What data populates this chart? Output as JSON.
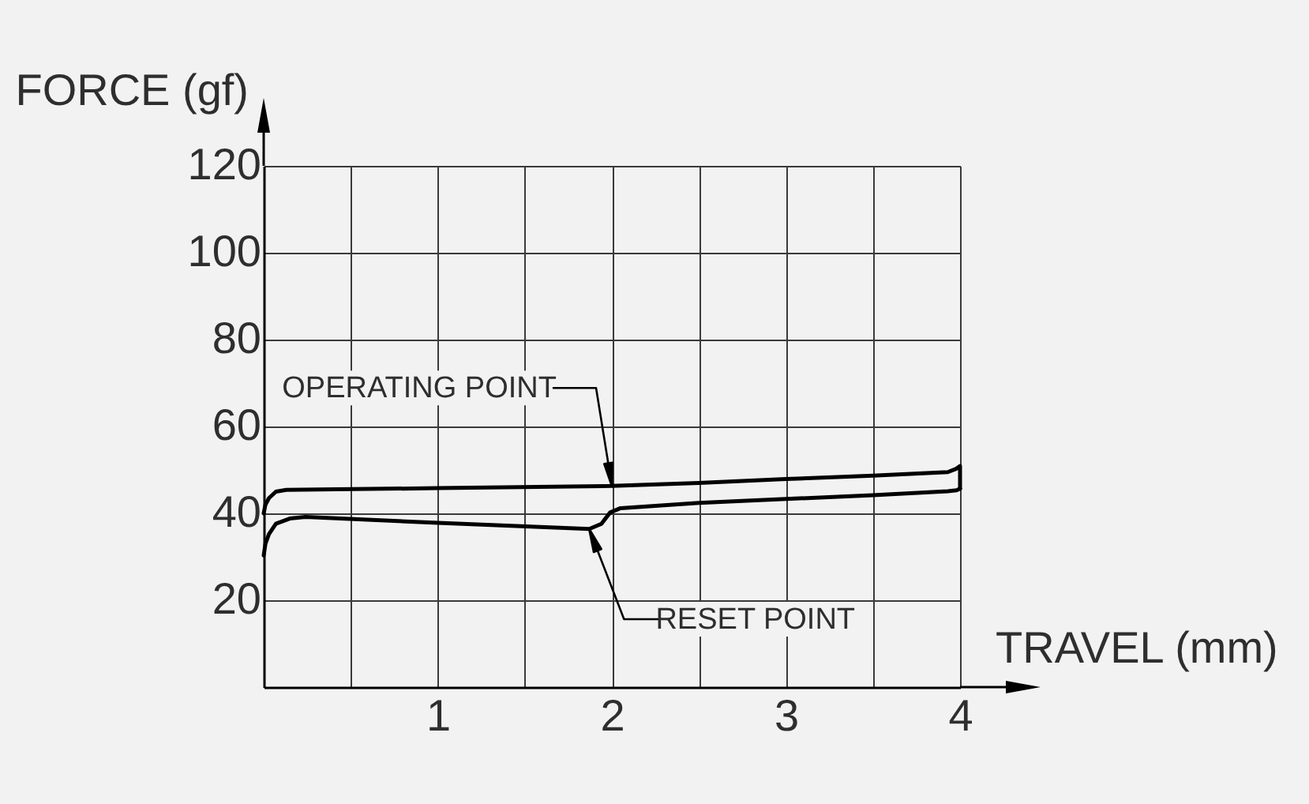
{
  "chart_data": {
    "type": "line",
    "xlabel": "TRAVEL (mm)",
    "ylabel": "FORCE (gf)",
    "series": [
      {
        "color": "#000000",
        "x": [
          0,
          0.01,
          0.03,
          0.07,
          0.13,
          1,
          2,
          2.5,
          3,
          3.5,
          3.93,
          3.98,
          4,
          4
        ],
        "values": [
          40,
          42,
          43.5,
          45,
          45.4,
          45.8,
          46.3,
          47,
          47.9,
          48.7,
          49.5,
          50.3,
          50.9,
          45.7
        ]
      },
      {
        "color": "#000000",
        "x": [
          4,
          3.98,
          3.93,
          3.5,
          3,
          2.5,
          2.05,
          1.99,
          1.94,
          1.87,
          1,
          0.24,
          0.15,
          0.07,
          0.03,
          0.01,
          0
        ],
        "values": [
          45.7,
          45.3,
          45.1,
          44.2,
          43.3,
          42.4,
          41.2,
          40.2,
          37.6,
          36.4,
          37.8,
          39.2,
          38.8,
          37.6,
          35.2,
          33,
          30.3
        ]
      }
    ],
    "xlim": [
      0,
      4
    ],
    "ylim": [
      0,
      120
    ],
    "xticks": [
      {
        "value": 0.5,
        "label": null
      },
      1,
      {
        "value": 1.5,
        "label": null
      },
      2,
      {
        "value": 2.5,
        "label": null
      },
      3,
      {
        "value": 3.5,
        "label": null
      },
      4
    ],
    "yticks": [
      20,
      40,
      60,
      80,
      100,
      120
    ],
    "grid": true,
    "line_style": "solid",
    "annotations": [
      "OPERATING POINT",
      "RESET POINT"
    ]
  }
}
